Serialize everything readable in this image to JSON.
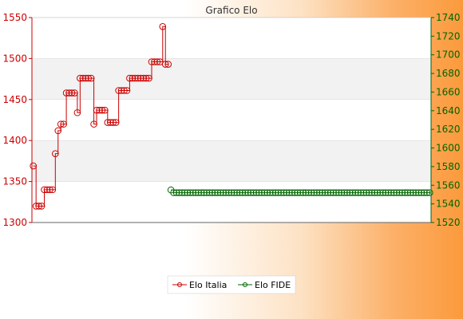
{
  "chart_data": {
    "type": "line",
    "title": "Grafico Elo",
    "xlabel": "",
    "ylabel": "",
    "y_left": {
      "lim": [
        1300,
        1550
      ],
      "ticks": [
        1300,
        1350,
        1400,
        1450,
        1500,
        1550
      ],
      "color": "#cc0000"
    },
    "y_right": {
      "lim": [
        1520,
        1740
      ],
      "ticks": [
        1520,
        1540,
        1560,
        1580,
        1600,
        1620,
        1640,
        1660,
        1680,
        1700,
        1720,
        1740
      ],
      "color": "#006600"
    },
    "grid": true,
    "legend_position": "bottom",
    "x_count": 145,
    "series": [
      {
        "name": "Elo Italia",
        "axis": "left",
        "color": "#cc0000",
        "x": [
          0,
          1,
          2,
          3,
          4,
          5,
          6,
          7,
          8,
          9,
          10,
          11,
          12,
          13,
          14,
          15,
          16,
          17,
          18,
          19,
          20,
          21,
          22,
          23,
          24,
          25,
          26,
          27,
          28,
          29,
          30,
          31,
          32,
          33,
          34,
          35,
          36,
          37,
          38,
          39,
          40,
          41,
          42,
          43,
          44,
          45,
          46,
          47,
          48,
          49
        ],
        "values": [
          1369,
          1320,
          1320,
          1320,
          1340,
          1340,
          1340,
          1340,
          1384,
          1412,
          1420,
          1420,
          1458,
          1458,
          1458,
          1458,
          1434,
          1476,
          1476,
          1476,
          1476,
          1476,
          1420,
          1437,
          1437,
          1437,
          1437,
          1422,
          1422,
          1422,
          1422,
          1461,
          1461,
          1461,
          1461,
          1476,
          1476,
          1476,
          1476,
          1476,
          1476,
          1476,
          1476,
          1496,
          1496,
          1496,
          1496,
          1539,
          1493,
          1493
        ]
      },
      {
        "name": "Elo FIDE",
        "axis": "right",
        "color": "#006600",
        "x": [
          50,
          51,
          52,
          53,
          54,
          55,
          56,
          57,
          58,
          59,
          60,
          61,
          62,
          63,
          64,
          65,
          66,
          67,
          68,
          69,
          70,
          71,
          72,
          73,
          74,
          75,
          76,
          77,
          78,
          79,
          80,
          81,
          82,
          83,
          84,
          85,
          86,
          87,
          88,
          89,
          90,
          91,
          92,
          93,
          94,
          95,
          96,
          97,
          98,
          99,
          100,
          101,
          102,
          103,
          104,
          105,
          106,
          107,
          108,
          109,
          110,
          111,
          112,
          113,
          114,
          115,
          116,
          117,
          118,
          119,
          120,
          121,
          122,
          123,
          124,
          125,
          126,
          127,
          128,
          129,
          130,
          131,
          132,
          133,
          134,
          135,
          136,
          137,
          138,
          139,
          140,
          141,
          142,
          143,
          144
        ],
        "values": [
          1555,
          1552,
          1552,
          1552,
          1552,
          1552,
          1552,
          1552,
          1552,
          1552,
          1552,
          1552,
          1552,
          1552,
          1552,
          1552,
          1552,
          1552,
          1552,
          1552,
          1552,
          1552,
          1552,
          1552,
          1552,
          1552,
          1552,
          1552,
          1552,
          1552,
          1552,
          1552,
          1552,
          1552,
          1552,
          1552,
          1552,
          1552,
          1552,
          1552,
          1552,
          1552,
          1552,
          1552,
          1552,
          1552,
          1552,
          1552,
          1552,
          1552,
          1552,
          1552,
          1552,
          1552,
          1552,
          1552,
          1552,
          1552,
          1552,
          1552,
          1552,
          1552,
          1552,
          1552,
          1552,
          1552,
          1552,
          1552,
          1552,
          1552,
          1552,
          1552,
          1552,
          1552,
          1552,
          1552,
          1552,
          1552,
          1552,
          1552,
          1552,
          1552,
          1552,
          1552,
          1552,
          1552,
          1552,
          1552,
          1552,
          1552,
          1552,
          1552,
          1552,
          1552,
          1552
        ]
      }
    ]
  }
}
